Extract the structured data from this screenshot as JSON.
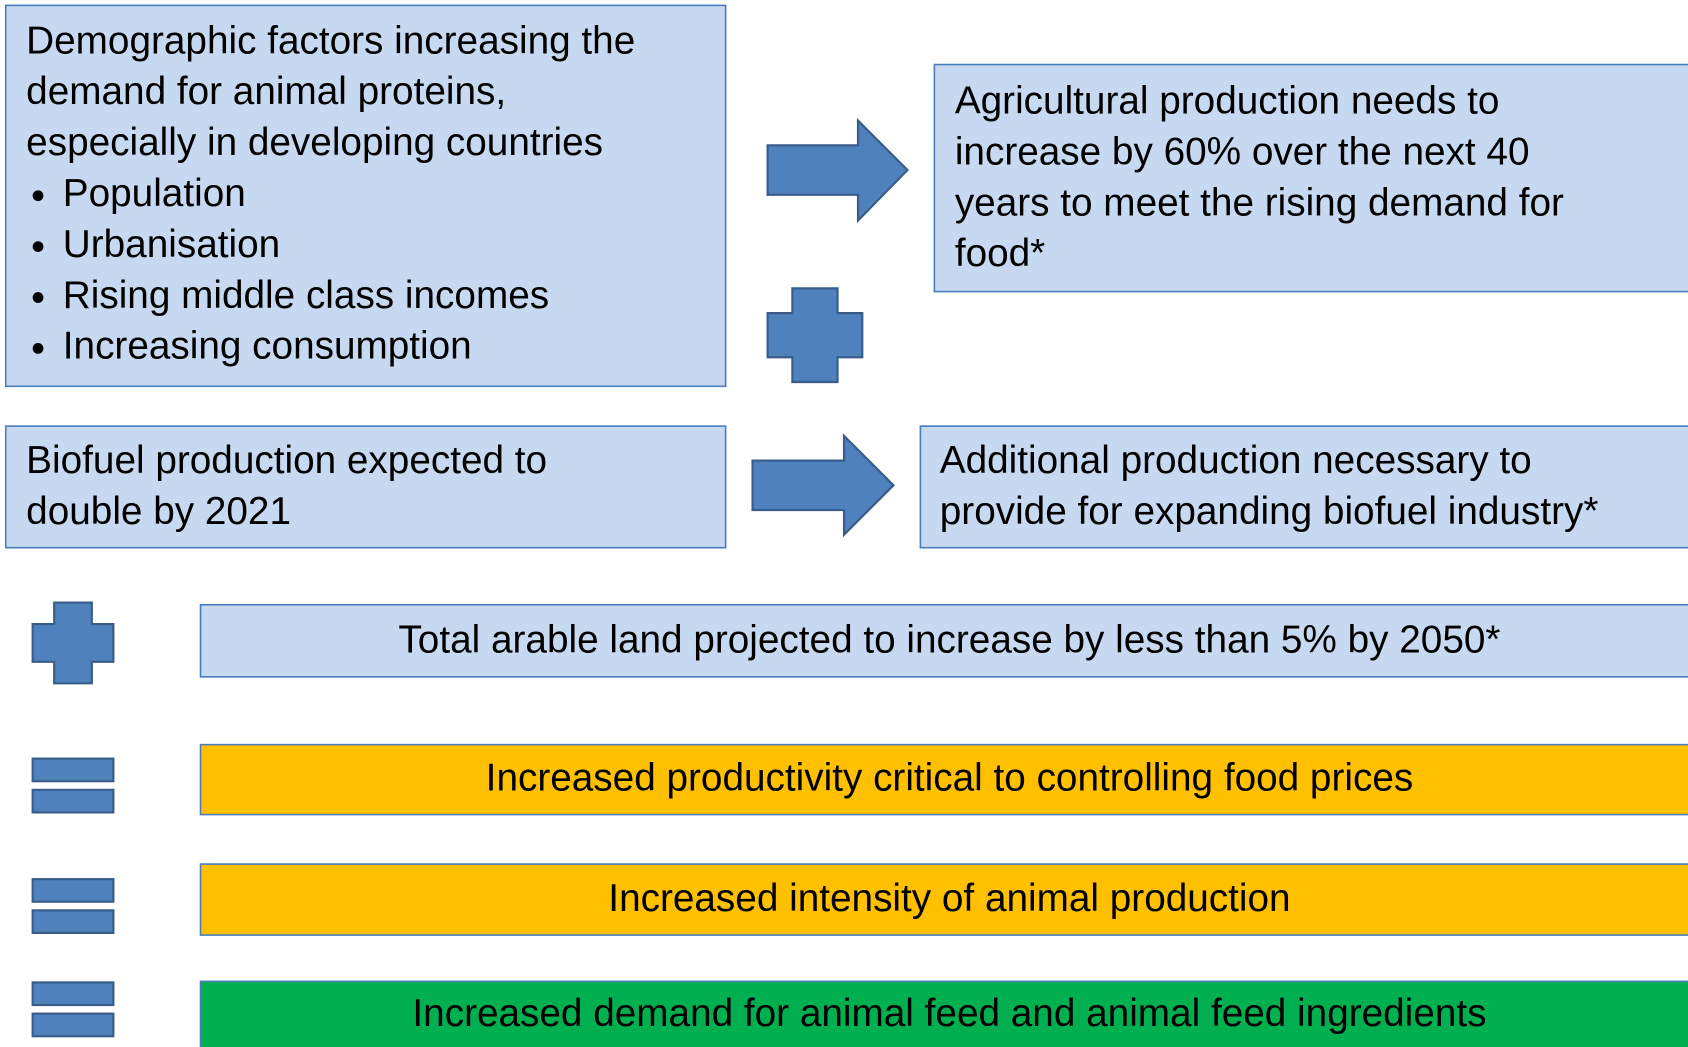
{
  "boxes": [
    {
      "lines": [
        "Demographic factors increasing the",
        "demand for animal proteins,",
        "especially in developing countries"
      ],
      "bullets": [
        "Population",
        "Urbanisation",
        "Rising middle class incomes",
        "Increasing consumption"
      ]
    },
    {
      "lines": [
        "Agricultural production needs to",
        "increase by 60% over the next 40",
        "years to meet the rising demand for",
        "food*"
      ]
    },
    {
      "lines": [
        "Biofuel production expected to",
        "double by 2021"
      ]
    },
    {
      "lines": [
        "Additional production necessary to",
        "provide for expanding biofuel industry*"
      ]
    },
    {
      "lines": [
        "Total arable land projected to increase by less than 5% by 2050*"
      ]
    },
    {
      "lines": [
        "Increased productivity critical to controlling food prices"
      ]
    },
    {
      "lines": [
        "Increased intensity of animal production"
      ]
    },
    {
      "lines": [
        "Increased demand for animal feed and animal feed ingredients"
      ]
    }
  ]
}
